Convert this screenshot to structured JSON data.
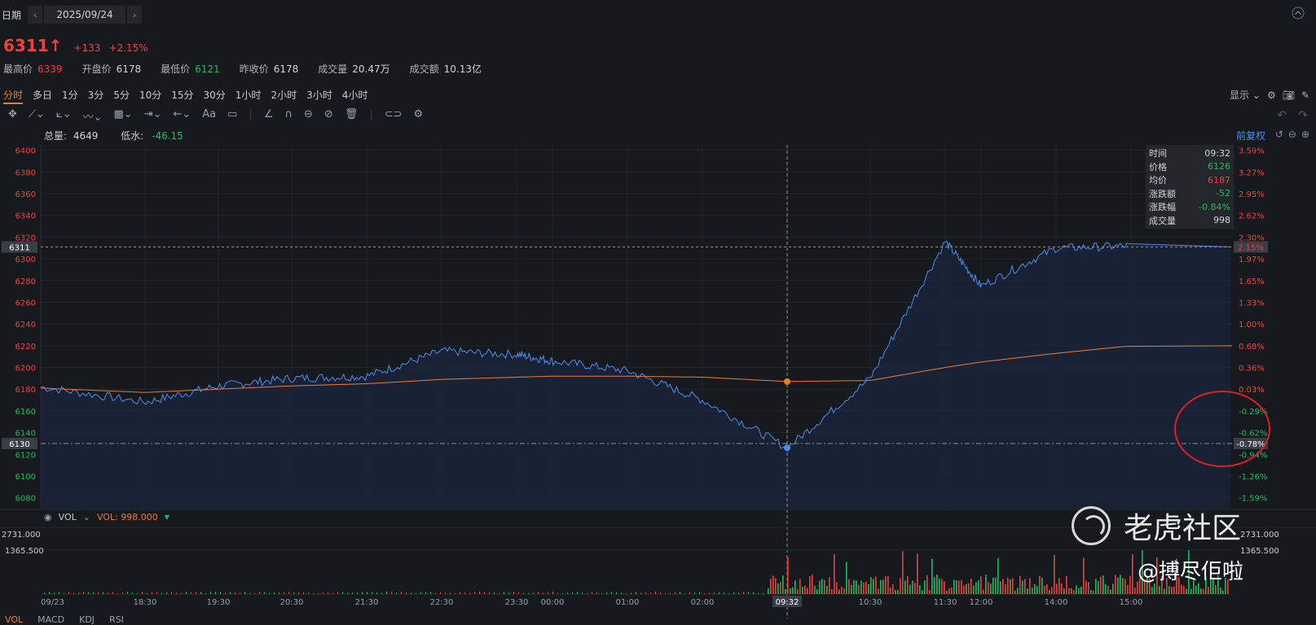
{
  "header": {
    "date_label": "日期",
    "prev_icon": "chevron-left-icon",
    "next_icon": "chevron-right-icon",
    "date": "2025/09/24",
    "price": "6311",
    "price_arrow": "↑",
    "change": "+133",
    "change_pct": "+2.15%",
    "stats": [
      {
        "label": "最高价",
        "value": "6339",
        "color": "red"
      },
      {
        "label": "开盘价",
        "value": "6178",
        "color": "white"
      },
      {
        "label": "最低价",
        "value": "6121",
        "color": "green"
      },
      {
        "label": "昨收价",
        "value": "6178",
        "color": "white"
      },
      {
        "label": "成交量",
        "value": "20.47万",
        "color": "white"
      },
      {
        "label": "成交额",
        "value": "10.13亿",
        "color": "white"
      }
    ]
  },
  "periods": [
    "分时",
    "多日",
    "1分",
    "3分",
    "5分",
    "10分",
    "15分",
    "30分",
    "1小时",
    "2小时",
    "3小时",
    "4小时"
  ],
  "active_period": "分时",
  "toolbar_right": {
    "display_label": "显示"
  },
  "info_bar": {
    "total_vol_label": "总量:",
    "total_vol": "4649",
    "low_water_label": "低水:",
    "low_water": "-46.15",
    "adjust_label": "前复权"
  },
  "tooltip": [
    {
      "k": "时间",
      "v": "09:32",
      "color": "#d0d4d8"
    },
    {
      "k": "价格",
      "v": "6126",
      "color": "#22b85f"
    },
    {
      "k": "均价",
      "v": "6187",
      "color": "#f0403c"
    },
    {
      "k": "涨跌额",
      "v": "-52",
      "color": "#22b85f"
    },
    {
      "k": "涨跌幅",
      "v": "-0.84%",
      "color": "#22b85f"
    },
    {
      "k": "成交量",
      "v": "998",
      "color": "#d0d4d8"
    }
  ],
  "vol_panel": {
    "label": "VOL",
    "value_label": "VOL: 998.000",
    "y_ticks_left": [
      "2731.000",
      "1365.500"
    ],
    "y_ticks_right": [
      "2731.000",
      "1365.500"
    ]
  },
  "indicator_tabs": [
    "VOL",
    "MACD",
    "KDJ",
    "RSI"
  ],
  "watermark": {
    "brand": "老虎社区",
    "author": "@搏尽佢啦"
  },
  "colors": {
    "price_line": "#4a8cf0",
    "avg_line": "#f07a2c",
    "up": "#f0403c",
    "down": "#22b85f"
  },
  "chart_data": {
    "type": "line",
    "y_left_ticks": [
      6400,
      6380,
      6360,
      6340,
      6320,
      6300,
      6280,
      6260,
      6240,
      6220,
      6200,
      6180,
      6160,
      6140,
      6120,
      6100,
      6080
    ],
    "y_right_ticks": [
      "3.59%",
      "3.27%",
      "2.95%",
      "2.62%",
      "2.30%",
      "1.97%",
      "1.65%",
      "1.33%",
      "1.00%",
      "0.68%",
      "0.36%",
      "0.03%",
      "-0.29%",
      "-0.62%",
      "-0.94%",
      "-1.26%",
      "-1.59%"
    ],
    "ylim": [
      6070,
      6405
    ],
    "x_ticks": [
      "09/23",
      "18:30",
      "19:30",
      "20:30",
      "21:30",
      "22:30",
      "23:30",
      "00:00",
      "01:00",
      "02:00",
      "09:32",
      "10:30",
      "11:30",
      "12:00",
      "14:00",
      "15:00"
    ],
    "current_price_label": "6311",
    "current_pct_label": "2.15%",
    "crosshair_price_label": "6130",
    "crosshair_pct_label": "-0.78%",
    "crosshair_time": "09:32",
    "series": [
      {
        "x": [
          "09/23",
          "18:30",
          "19:30",
          "20:30",
          "21:30",
          "22:30",
          "23:30",
          "00:00",
          "01:00",
          "02:00",
          "09:32",
          "10:30",
          "11:30",
          "12:00",
          "14:00",
          "15:00"
        ],
        "values": [
          6182,
          6168,
          6183,
          6190,
          6192,
          6215,
          6212,
          6206,
          6197,
          6170,
          6126,
          6190,
          6316,
          6275,
          6310,
          6312
        ]
      },
      {
        "x": [
          "09/23",
          "18:30",
          "19:30",
          "20:30",
          "21:30",
          "22:30",
          "23:30",
          "00:00",
          "01:00",
          "02:00",
          "09:32",
          "10:30",
          "11:30",
          "12:00",
          "14:00",
          "15:00"
        ],
        "values": [
          6181,
          6177,
          6180,
          6183,
          6185,
          6189,
          6191,
          6192,
          6192,
          6191,
          6187,
          6188,
          6200,
          6205,
          6213,
          6220
        ]
      }
    ]
  }
}
